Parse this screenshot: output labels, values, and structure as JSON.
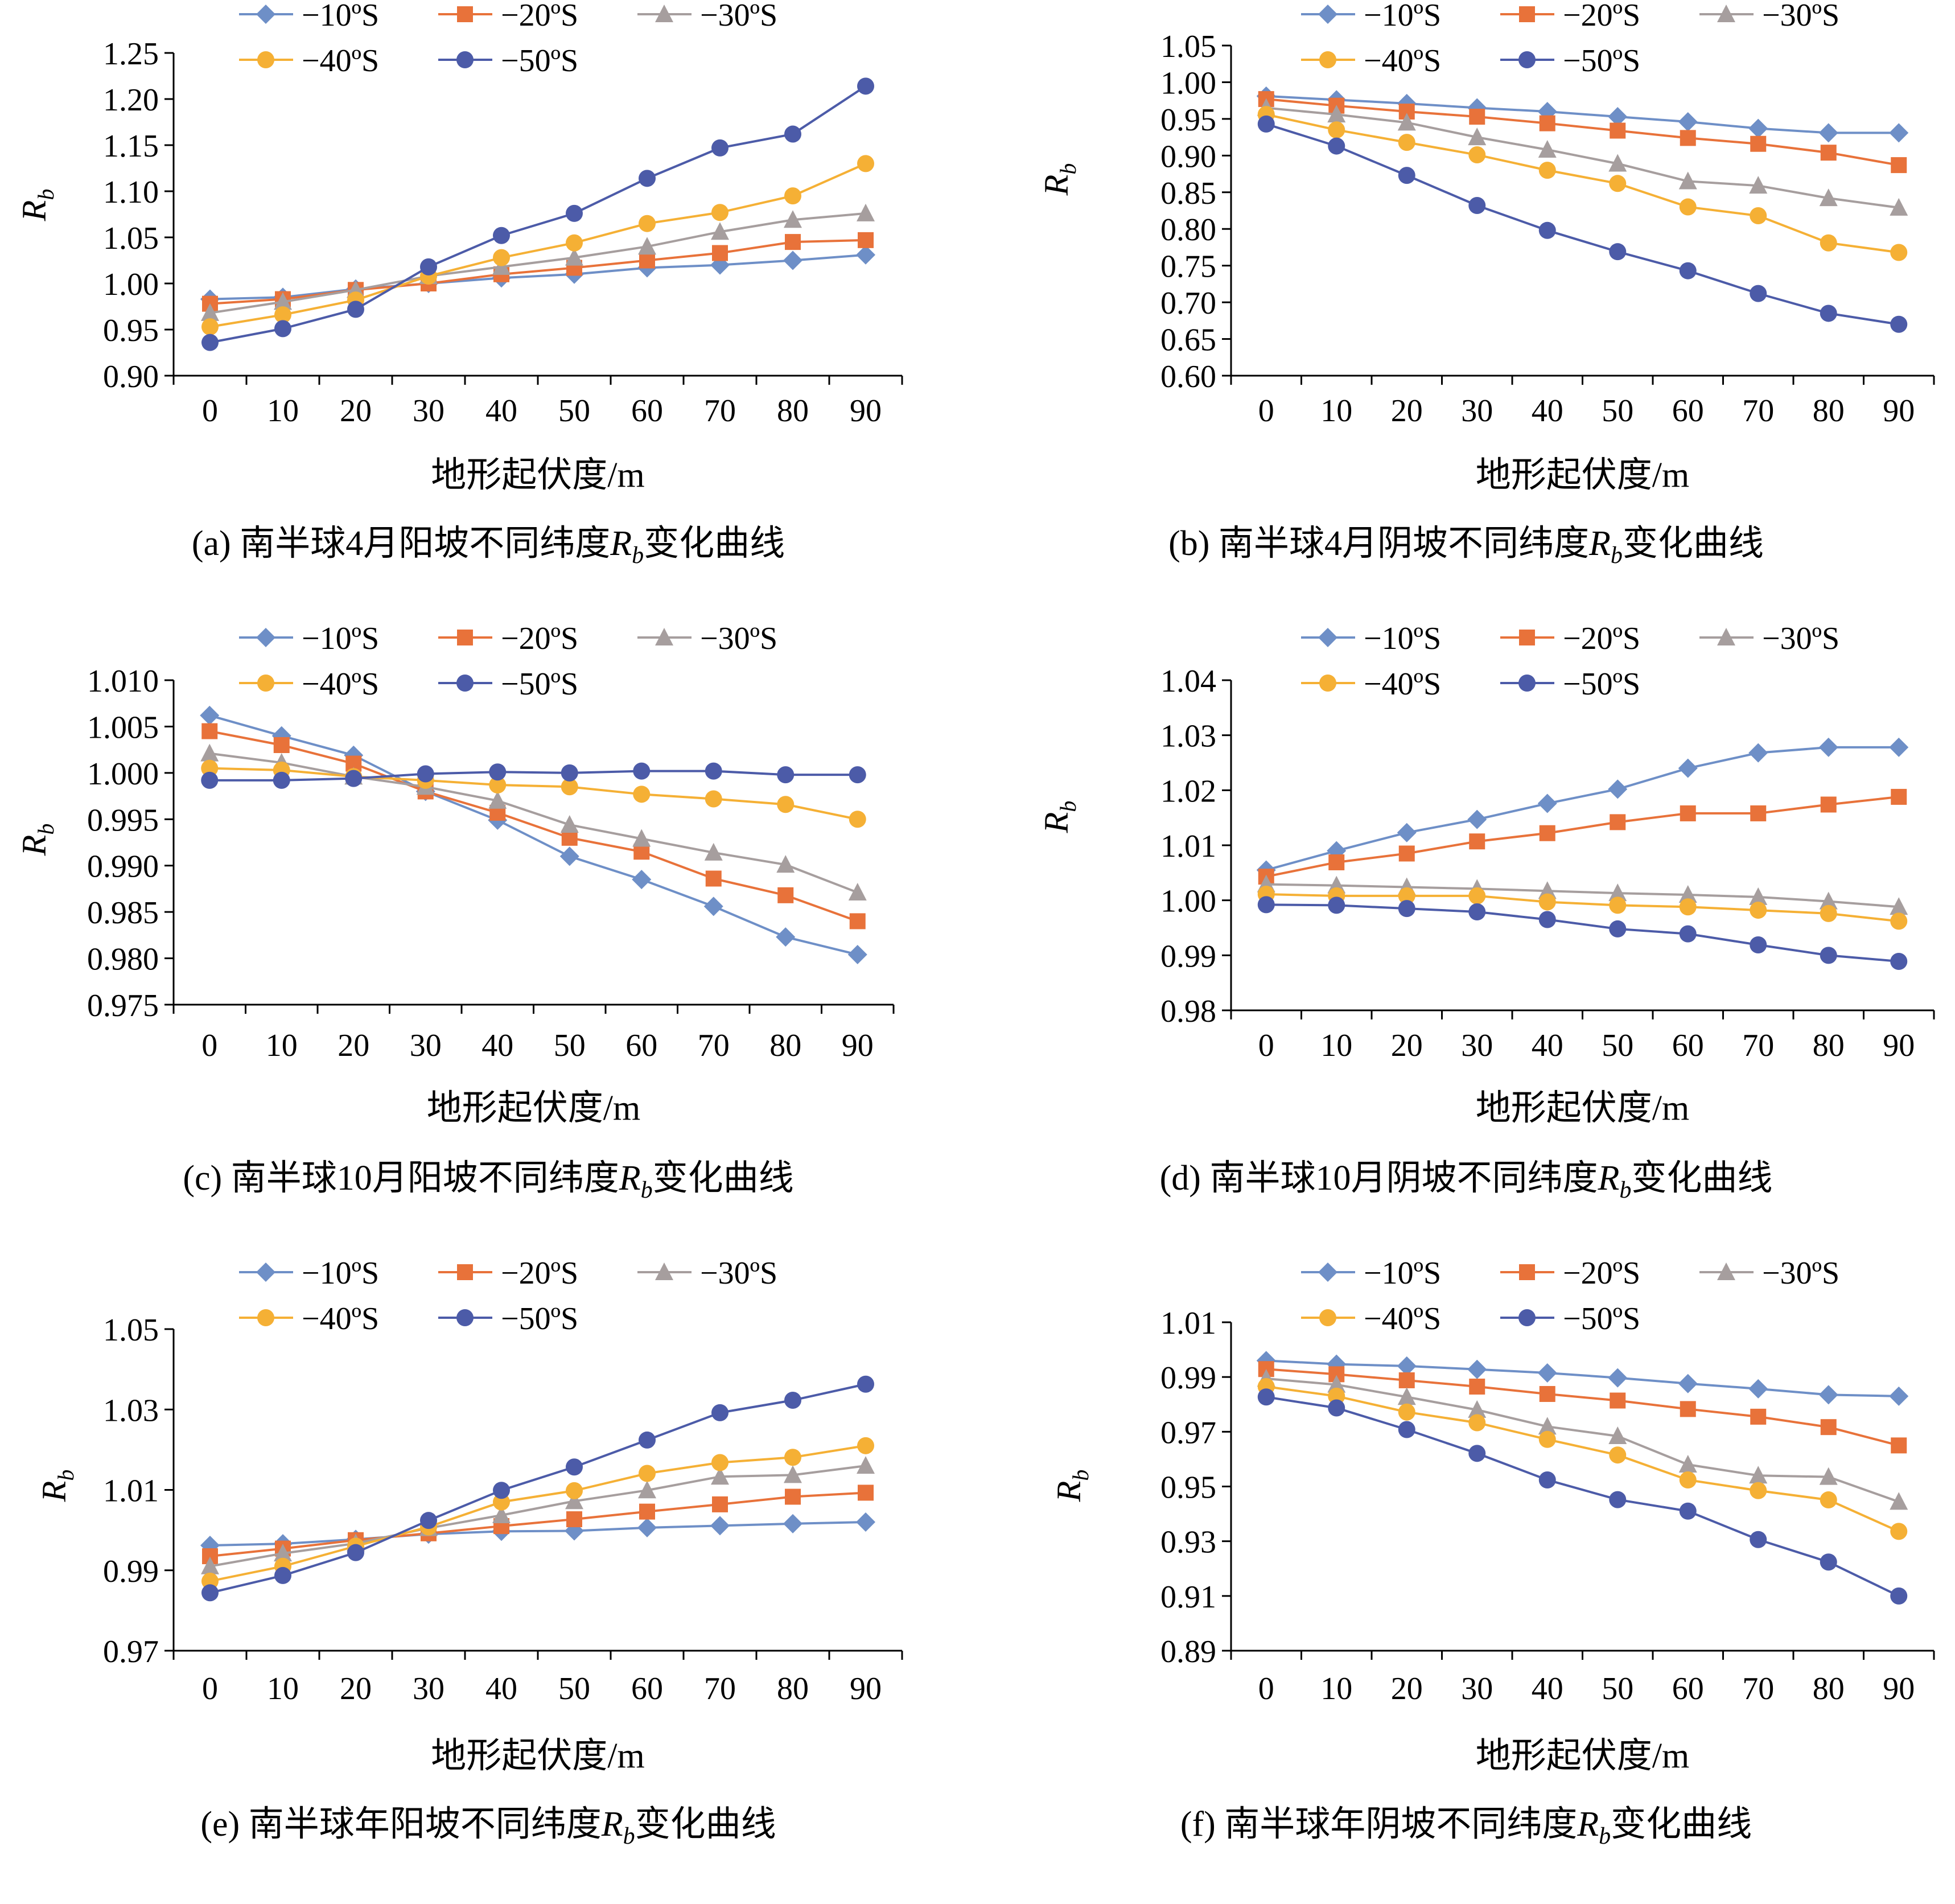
{
  "chart_data": [
    {
      "type": "line",
      "caption_prefix": "(a) 南半球4月阳坡不同纬度",
      "caption_var": "R",
      "caption_sub": "b",
      "caption_suffix": "变化曲线",
      "xlabel": "地形起伏度/m",
      "ylabel": "R",
      "ylabel_sub": "b",
      "x": [
        0,
        10,
        20,
        30,
        40,
        50,
        60,
        70,
        80,
        90
      ],
      "ylim": [
        0.9,
        1.25
      ],
      "yticks": [
        "0.90",
        "0.95",
        "1.00",
        "1.05",
        "1.10",
        "1.15",
        "1.20",
        "1.25"
      ],
      "legend_position": "top",
      "series": [
        {
          "name": "−10ºS",
          "values": [
            0.983,
            0.985,
            0.994,
            1.0,
            1.006,
            1.01,
            1.017,
            1.02,
            1.025,
            1.031
          ]
        },
        {
          "name": "−20ºS",
          "values": [
            0.978,
            0.983,
            0.993,
            1.0,
            1.01,
            1.017,
            1.025,
            1.033,
            1.045,
            1.047
          ]
        },
        {
          "name": "−30ºS",
          "values": [
            0.968,
            0.98,
            0.993,
            1.008,
            1.018,
            1.028,
            1.04,
            1.056,
            1.069,
            1.076
          ]
        },
        {
          "name": "−40ºS",
          "values": [
            0.953,
            0.966,
            0.982,
            1.008,
            1.028,
            1.044,
            1.065,
            1.077,
            1.095,
            1.13
          ]
        },
        {
          "name": "−50ºS",
          "values": [
            0.936,
            0.951,
            0.972,
            1.018,
            1.052,
            1.076,
            1.114,
            1.147,
            1.162,
            1.214
          ]
        }
      ]
    },
    {
      "type": "line",
      "caption_prefix": "(b) 南半球4月阴坡不同纬度",
      "caption_var": "R",
      "caption_sub": "b",
      "caption_suffix": "变化曲线",
      "xlabel": "地形起伏度/m",
      "ylabel": "R",
      "ylabel_sub": "b",
      "x": [
        0,
        10,
        20,
        30,
        40,
        50,
        60,
        70,
        80,
        90
      ],
      "ylim": [
        0.6,
        1.05
      ],
      "yticks": [
        "0.60",
        "0.65",
        "0.70",
        "0.75",
        "0.80",
        "0.85",
        "0.90",
        "0.95",
        "1.00",
        "1.05"
      ],
      "legend_position": "top",
      "series": [
        {
          "name": "−10ºS",
          "values": [
            0.981,
            0.976,
            0.971,
            0.965,
            0.96,
            0.953,
            0.946,
            0.937,
            0.931,
            0.931
          ]
        },
        {
          "name": "−20ºS",
          "values": [
            0.977,
            0.968,
            0.96,
            0.953,
            0.944,
            0.934,
            0.924,
            0.916,
            0.904,
            0.887
          ]
        },
        {
          "name": "−30ºS",
          "values": [
            0.965,
            0.956,
            0.945,
            0.925,
            0.908,
            0.889,
            0.865,
            0.859,
            0.842,
            0.829
          ]
        },
        {
          "name": "−40ºS",
          "values": [
            0.956,
            0.935,
            0.918,
            0.901,
            0.88,
            0.862,
            0.83,
            0.818,
            0.781,
            0.768
          ]
        },
        {
          "name": "−50ºS",
          "values": [
            0.943,
            0.913,
            0.873,
            0.832,
            0.798,
            0.769,
            0.743,
            0.712,
            0.685,
            0.67
          ]
        }
      ]
    },
    {
      "type": "line",
      "caption_prefix": "(c) 南半球10月阳坡不同纬度",
      "caption_var": "R",
      "caption_sub": "b",
      "caption_suffix": "变化曲线",
      "xlabel": "地形起伏度/m",
      "ylabel": "R",
      "ylabel_sub": "b",
      "x": [
        0,
        10,
        20,
        30,
        40,
        50,
        60,
        70,
        80,
        90
      ],
      "ylim": [
        0.975,
        1.01
      ],
      "yticks": [
        "0.975",
        "0.980",
        "0.985",
        "0.990",
        "0.995",
        "1.000",
        "1.005",
        "1.010"
      ],
      "legend_position": "top",
      "series": [
        {
          "name": "−10ºS",
          "values": [
            1.0062,
            1.004,
            1.0019,
            0.998,
            0.9949,
            0.991,
            0.9885,
            0.9856,
            0.9823,
            0.9804
          ]
        },
        {
          "name": "−20ºS",
          "values": [
            1.0045,
            1.003,
            1.001,
            0.998,
            0.9957,
            0.993,
            0.9915,
            0.9886,
            0.9868,
            0.984
          ]
        },
        {
          "name": "−30ºS",
          "values": [
            1.0021,
            1.0011,
            0.9996,
            0.9985,
            0.997,
            0.9944,
            0.9929,
            0.9914,
            0.9901,
            0.9871
          ]
        },
        {
          "name": "−40ºS",
          "values": [
            1.0005,
            1.0003,
            0.9996,
            0.9992,
            0.9987,
            0.9985,
            0.9977,
            0.9972,
            0.9966,
            0.995
          ]
        },
        {
          "name": "−50ºS",
          "values": [
            0.9992,
            0.9992,
            0.9994,
            0.9999,
            1.0001,
            1.0,
            1.0002,
            1.0002,
            0.9998,
            0.9998
          ]
        }
      ]
    },
    {
      "type": "line",
      "caption_prefix": "(d) 南半球10月阴坡不同纬度",
      "caption_var": "R",
      "caption_sub": "b",
      "caption_suffix": "变化曲线",
      "xlabel": "地形起伏度/m",
      "ylabel": "R",
      "ylabel_sub": "b",
      "x": [
        0,
        10,
        20,
        30,
        40,
        50,
        60,
        70,
        80,
        90
      ],
      "ylim": [
        0.98,
        1.04
      ],
      "yticks": [
        "0.98",
        "0.99",
        "1.00",
        "1.01",
        "1.02",
        "1.03",
        "1.04"
      ],
      "legend_position": "top",
      "series": [
        {
          "name": "−10ºS",
          "values": [
            1.0055,
            1.009,
            1.0123,
            1.0147,
            1.0176,
            1.0202,
            1.024,
            1.0268,
            1.0278,
            1.0278
          ]
        },
        {
          "name": "−20ºS",
          "values": [
            1.0043,
            1.0069,
            1.0085,
            1.0107,
            1.0122,
            1.0142,
            1.0158,
            1.0158,
            1.0174,
            1.0188
          ]
        },
        {
          "name": "−30ºS",
          "values": [
            1.0029,
            1.0027,
            1.0024,
            1.0021,
            1.0017,
            1.0013,
            1.001,
            1.0006,
            0.9998,
            0.9988
          ]
        },
        {
          "name": "−40ºS",
          "values": [
            1.0011,
            1.0008,
            1.0008,
            1.0008,
            0.9997,
            0.9991,
            0.9988,
            0.9982,
            0.9976,
            0.9962
          ]
        },
        {
          "name": "−50ºS",
          "values": [
            0.9992,
            0.9991,
            0.9985,
            0.9979,
            0.9965,
            0.9948,
            0.9939,
            0.9919,
            0.99,
            0.9889
          ]
        }
      ]
    },
    {
      "type": "line",
      "caption_prefix": "(e) 南半球年阳坡不同纬度",
      "caption_var": "R",
      "caption_sub": "b",
      "caption_suffix": "变化曲线",
      "xlabel": "地形起伏度/m",
      "ylabel": "R",
      "ylabel_sub": "b",
      "x": [
        0,
        10,
        20,
        30,
        40,
        50,
        60,
        70,
        80,
        90
      ],
      "ylim": [
        0.97,
        1.05
      ],
      "yticks": [
        "0.97",
        "0.99",
        "1.01",
        "1.03",
        "1.05"
      ],
      "legend_position": "top",
      "series": [
        {
          "name": "−10ºS",
          "values": [
            0.9962,
            0.9966,
            0.9977,
            0.999,
            0.9997,
            0.9998,
            1.0006,
            1.0011,
            1.0016,
            1.002
          ]
        },
        {
          "name": "−20ºS",
          "values": [
            0.9935,
            0.9954,
            0.9975,
            0.9992,
            1.001,
            1.0027,
            1.0046,
            1.0064,
            1.0083,
            1.0093
          ]
        },
        {
          "name": "−30ºS",
          "values": [
            0.991,
            0.9942,
            0.9967,
            1.0005,
            1.0037,
            1.0072,
            1.0099,
            1.0133,
            1.0137,
            1.016
          ]
        },
        {
          "name": "−40ºS",
          "values": [
            0.9873,
            0.991,
            0.996,
            1.0008,
            1.007,
            1.0098,
            1.0141,
            1.0168,
            1.0181,
            1.021
          ]
        },
        {
          "name": "−50ºS",
          "values": [
            0.9844,
            0.9887,
            0.9944,
            1.0024,
            1.0099,
            1.0157,
            1.0224,
            1.0292,
            1.0323,
            1.0363
          ]
        }
      ]
    },
    {
      "type": "line",
      "caption_prefix": "(f) 南半球年阴坡不同纬度",
      "caption_var": "R",
      "caption_sub": "b",
      "caption_suffix": "变化曲线",
      "xlabel": "地形起伏度/m",
      "ylabel": "R",
      "ylabel_sub": "b",
      "x": [
        0,
        10,
        20,
        30,
        40,
        50,
        60,
        70,
        80,
        90
      ],
      "ylim": [
        0.89,
        1.01
      ],
      "yticks": [
        "0.89",
        "0.91",
        "0.93",
        "0.95",
        "0.97",
        "0.99",
        "1.01"
      ],
      "legend_position": "top",
      "series": [
        {
          "name": "−10ºS",
          "values": [
            0.996,
            0.9947,
            0.994,
            0.9928,
            0.9915,
            0.9897,
            0.9876,
            0.9857,
            0.9835,
            0.983
          ]
        },
        {
          "name": "−20ºS",
          "values": [
            0.9929,
            0.991,
            0.9888,
            0.9865,
            0.9838,
            0.9814,
            0.9783,
            0.9755,
            0.9717,
            0.965
          ]
        },
        {
          "name": "−30ºS",
          "values": [
            0.9894,
            0.9872,
            0.9827,
            0.978,
            0.9719,
            0.9684,
            0.958,
            0.954,
            0.9535,
            0.9444
          ]
        },
        {
          "name": "−40ºS",
          "values": [
            0.9865,
            0.983,
            0.9772,
            0.9733,
            0.9672,
            0.9615,
            0.9524,
            0.9485,
            0.9451,
            0.9336
          ]
        },
        {
          "name": "−50ºS",
          "values": [
            0.9827,
            0.9787,
            0.9708,
            0.9621,
            0.9524,
            0.9452,
            0.941,
            0.9306,
            0.9224,
            0.91
          ]
        }
      ]
    }
  ],
  "series_colors": [
    "#6E8FC7",
    "#E8723A",
    "#A69E9E",
    "#F5B035",
    "#4C5BA8"
  ],
  "series_markers": [
    "diamond",
    "square",
    "triangle",
    "circle",
    "circle"
  ]
}
